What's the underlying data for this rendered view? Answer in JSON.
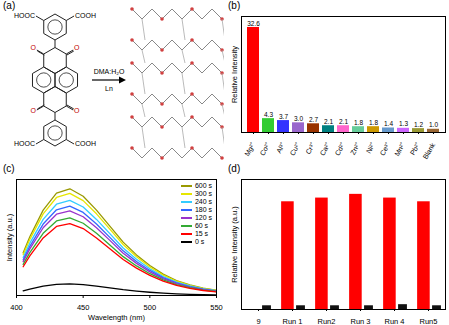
{
  "diagram": {
    "title": "(a)",
    "reagents": "DMA:H₂O",
    "metal": "Ln",
    "acid_groups": [
      "HOOC",
      "COOH",
      "HOOC",
      "COOH"
    ],
    "carbonyl_oxygens": [
      "O",
      "O",
      "O",
      "O"
    ]
  },
  "chart_data": [
    {
      "type": "bar",
      "title": "(b)",
      "y_label": "Relative Intensity",
      "categories": [
        "Mg²⁺",
        "Co²⁺",
        "Al³⁺",
        "Cu²⁺",
        "Cr³⁺",
        "Ca²⁺",
        "Cd²⁺",
        "Zn²⁺",
        "Ni²⁺",
        "Ce³⁺",
        "Mn²⁺",
        "Pb²⁺",
        "Blank"
      ],
      "values": [
        32.6,
        4.3,
        3.7,
        3.0,
        2.7,
        2.1,
        2.1,
        1.8,
        1.8,
        1.4,
        1.3,
        1.2,
        1.0
      ],
      "value_labels": [
        "32.6",
        "4.3",
        "3.7",
        "3.0",
        "2.7",
        "2.1",
        "2.1",
        "1.8",
        "1.8",
        "1.4",
        "1.3",
        "1.2",
        "1.0"
      ],
      "colors": [
        "#ff0000",
        "#33cc33",
        "#3333ff",
        "#9966cc",
        "#993300",
        "#008080",
        "#ff66cc",
        "#66cc99",
        "#cc9900",
        "#6699cc",
        "#cc66ff",
        "#999933",
        "#996633"
      ],
      "ylim": [
        0,
        36
      ],
      "data_labels": true,
      "tick_labels": "x"
    },
    {
      "type": "line",
      "title": "(c)",
      "x_label": "Wavelength (nm)",
      "y_label": "Intensity (a.u.)",
      "x": [
        405,
        410,
        420,
        430,
        440,
        450,
        460,
        470,
        480,
        490,
        500,
        510,
        520,
        530,
        540,
        550
      ],
      "series": [
        {
          "name": "600 s",
          "color": "#999900",
          "values": [
            36.8,
            50.6,
            73.6,
            88.3,
            92,
            85.6,
            73.6,
            59.8,
            46,
            35,
            25.8,
            18.4,
            12.9,
            9.2,
            6.4,
            4.6
          ]
        },
        {
          "name": "300 s",
          "color": "#e6e600",
          "values": [
            35.2,
            48.4,
            70.4,
            84.5,
            88,
            81.8,
            70.4,
            57.2,
            44,
            33.4,
            24.6,
            17.6,
            12.3,
            8.8,
            6.2,
            4.4
          ]
        },
        {
          "name": "240 s",
          "color": "#33ccff",
          "values": [
            32.8,
            45.1,
            65.6,
            78.7,
            82,
            76.3,
            65.6,
            53.3,
            41,
            31.2,
            23,
            16.4,
            11.5,
            8.2,
            5.7,
            4.1
          ]
        },
        {
          "name": "180 s",
          "color": "#3366ff",
          "values": [
            30.8,
            42.4,
            61.6,
            73.9,
            77,
            71.6,
            61.6,
            50.1,
            38.5,
            29.3,
            21.6,
            15.4,
            10.8,
            7.7,
            5.4,
            3.9
          ]
        },
        {
          "name": "120 s",
          "color": "#9933cc",
          "values": [
            29.2,
            40.2,
            58.4,
            70.1,
            73,
            67.9,
            58.4,
            47.5,
            36.5,
            27.7,
            20.4,
            14.6,
            10.2,
            7.3,
            5.1,
            3.7
          ]
        },
        {
          "name": "60 s",
          "color": "#33aa33",
          "values": [
            26.8,
            36.9,
            53.6,
            64.3,
            67,
            62.3,
            53.6,
            43.6,
            33.5,
            25.5,
            18.8,
            13.4,
            9.4,
            6.7,
            4.7,
            3.4
          ]
        },
        {
          "name": "15 s",
          "color": "#ff0000",
          "values": [
            24.8,
            34.1,
            49.6,
            59.5,
            62,
            57.7,
            49.6,
            40.3,
            31,
            23.6,
            17.4,
            12.4,
            8.7,
            6.2,
            4.3,
            3.1
          ]
        },
        {
          "name": "0 s",
          "color": "#000000",
          "values": [
            4,
            5.5,
            8,
            9.6,
            10,
            9.3,
            8,
            6.5,
            5,
            3.8,
            2.8,
            2,
            1.4,
            1,
            0.7,
            0.5
          ]
        }
      ],
      "xlim": [
        400,
        550
      ],
      "xticks": [
        400,
        450,
        500,
        550
      ],
      "ylim": [
        0,
        100
      ],
      "legend": "top-right",
      "tick_labels": "x"
    },
    {
      "type": "bar",
      "title": "(d)",
      "y_label": "Relative Intensity (a.u.)",
      "categories": [
        "9",
        "Run 1",
        "Run2",
        "Run 3",
        "Run 4",
        "Run5"
      ],
      "series": [
        {
          "color": "#ff0000",
          "values": [
            null,
            29,
            30,
            31,
            30,
            29
          ]
        },
        {
          "color": "#111111",
          "values": [
            1,
            1,
            1,
            1,
            1.3,
            1
          ]
        }
      ],
      "ylim": [
        0,
        35
      ],
      "tick_labels": "x"
    }
  ]
}
